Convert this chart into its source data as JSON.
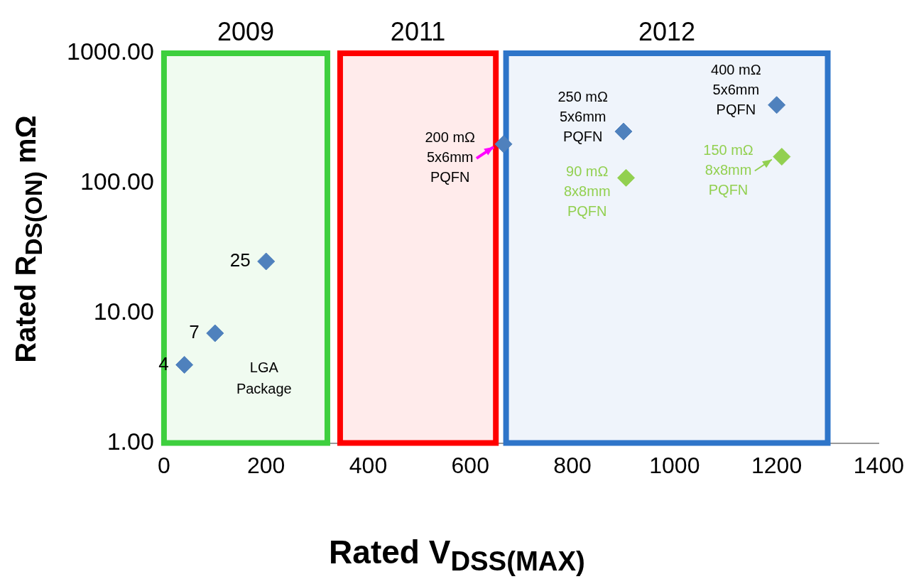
{
  "chart_data": {
    "type": "scatter",
    "xlabel": "Rated V$_{DSS(MAX)}$",
    "ylabel": "Rated R$_{DS(ON)}$ mΩ",
    "xlim": [
      0,
      1400
    ],
    "xticks": [
      0,
      200,
      400,
      600,
      800,
      1000,
      1200,
      1400
    ],
    "ylim": [
      1,
      1000
    ],
    "yticks": [
      {
        "value": 1,
        "label": "1.00"
      },
      {
        "value": 10,
        "label": "10.00"
      },
      {
        "value": 100,
        "label": "100.00"
      },
      {
        "value": 1000,
        "label": "1000.00"
      }
    ],
    "log": "y",
    "grid": false,
    "legend": false,
    "marker": "diamond",
    "series": [
      {
        "color": "#4f81bd",
        "x": [
          40,
          100,
          200,
          665,
          900,
          1200
        ],
        "values": [
          4,
          7,
          25,
          200,
          250,
          400
        ],
        "value_labels": [
          "4",
          "7",
          "25",
          "200 mΩ\n5x6mm\nPQFN",
          "250 mΩ\n5x6mm\nPQFN",
          "400 mΩ\n5x6mm\nPQFN"
        ]
      },
      {
        "color": "#92d050",
        "x": [
          905,
          1210
        ],
        "values": [
          110,
          160
        ],
        "value_labels": [
          "90 mΩ\n8x8mm\nPQFN",
          "150 mΩ\n8x8mm\nPQFN"
        ]
      }
    ],
    "bands": [
      {
        "axis": "x",
        "from": 0,
        "to": 320,
        "label": "2009",
        "color": "#3ecf3e"
      },
      {
        "axis": "x",
        "from": 345,
        "to": 650,
        "label": "2011",
        "color": "#ff0000"
      },
      {
        "axis": "x",
        "from": 670,
        "to": 1300,
        "label": "2012",
        "color": "#2e75c9"
      }
    ],
    "annotations": [
      "LGA Package"
    ]
  }
}
